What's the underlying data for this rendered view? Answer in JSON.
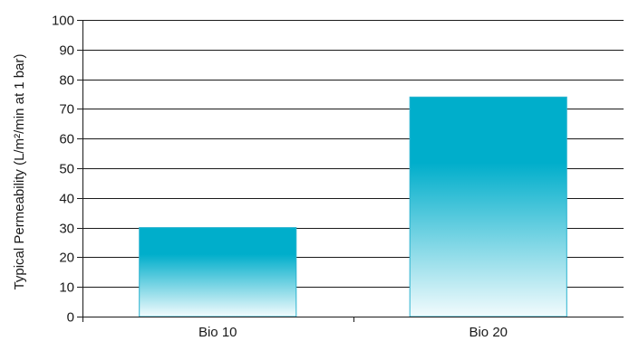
{
  "chart_data": {
    "type": "bar",
    "title": "",
    "xlabel": "",
    "ylabel": "Typical Permeability (L/m²/min at 1 bar)",
    "categories": [
      "Bio 10",
      "Bio 20"
    ],
    "values": [
      30,
      74
    ],
    "ylim": [
      0,
      100
    ],
    "yticks": [
      0,
      10,
      20,
      30,
      40,
      50,
      60,
      70,
      80,
      90,
      100
    ],
    "grid": true,
    "colors": {
      "bar_top": "#00aecb",
      "bar_bottom": "#f2fbfd",
      "bar_edge": "#2bb3cf",
      "grid": "#1a1a1a",
      "axis": "#1a1a1a"
    }
  }
}
